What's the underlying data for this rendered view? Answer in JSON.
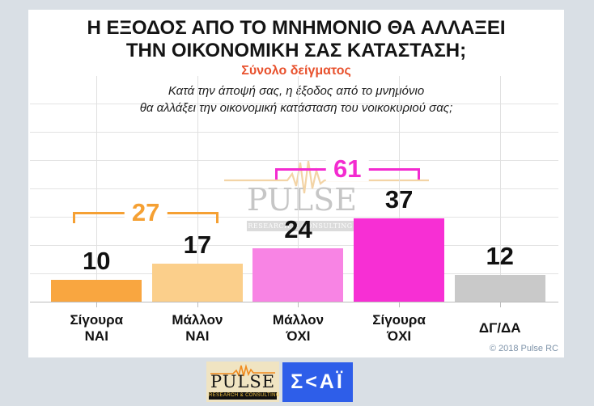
{
  "page": {
    "background": "#D9DFE5",
    "card_background": "#FFFFFF"
  },
  "header": {
    "title_lines": [
      "Η ΕΞΟΔΟΣ ΑΠΟ ΤΟ ΜΝΗΜΟΝΙΟ ΘΑ ΑΛΛΑΞΕΙ",
      "ΤΗΝ ΟΙΚΟΝΟΜΙΚΗ ΣΑΣ ΚΑΤΑΣΤΑΣΗ;"
    ],
    "subtitle": "Σύνολο δείγματος",
    "subtitle_color": "#E8512D"
  },
  "chart_data": {
    "type": "bar",
    "title": "Η ΕΞΟΔΟΣ ΑΠΟ ΤΟ ΜΝΗΜΟΝΙΟ ΘΑ ΑΛΛΑΞΕΙ ΤΗΝ ΟΙΚΟΝΟΜΙΚΗ ΣΑΣ ΚΑΤΑΣΤΑΣΗ;",
    "subtitle": "Σύνολο δείγματος",
    "question_lines": [
      "Κατά την άποψή σας, η έξοδος από το μνημόνιο",
      "θα αλλάξει την οικονομική κατάσταση του νοικοκυριού σας;"
    ],
    "categories": [
      "Σίγουρα ΝΑΙ",
      "Μάλλον ΝΑΙ",
      "Μάλλον ΌΧΙ",
      "Σίγουρα ΌΧΙ",
      "ΔΓ/ΔΑ"
    ],
    "category_label_lines": [
      [
        "Σίγουρα",
        "ΝΑΙ"
      ],
      [
        "Μάλλον",
        "ΝΑΙ"
      ],
      [
        "Μάλλον",
        "ΌΧΙ"
      ],
      [
        "Σίγουρα",
        "ΌΧΙ"
      ],
      [
        "ΔΓ/ΔΑ"
      ]
    ],
    "values": [
      10,
      17,
      24,
      37,
      12
    ],
    "bar_colors": [
      "#F9A640",
      "#FBCF8B",
      "#F884E4",
      "#F72FD4",
      "#C9C9C9"
    ],
    "groups": [
      {
        "label": "27",
        "from_index": 0,
        "to_index": 1,
        "color": "#F5A033"
      },
      {
        "label": "61",
        "from_index": 2,
        "to_index": 3,
        "color": "#F32BD0"
      }
    ],
    "ylim": [
      0,
      100
    ],
    "grid": true,
    "value_labels": true,
    "legend": "none"
  },
  "watermark": {
    "name": "PULSE",
    "tagline": "RESEARCH & CONSULTING"
  },
  "footer": {
    "copyright": "© 2018 Pulse RC",
    "pulse_logo": {
      "name": "PULSE",
      "tagline": "RESEARCH & CONSULTING"
    },
    "skai_logo": {
      "text": "Σ<ΑΪ"
    }
  }
}
